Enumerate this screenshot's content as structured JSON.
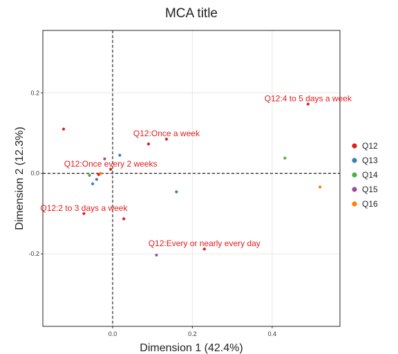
{
  "chart_data": {
    "type": "scatter",
    "title": "MCA title",
    "xlabel": "Dimension 1 (42.4%)",
    "ylabel": "Dimension 2 (12.3%)",
    "xlim": [
      -0.175,
      0.57
    ],
    "ylim": [
      -0.38,
      0.355
    ],
    "x_ticks": [
      {
        "value": 0.0,
        "label": "0.0"
      },
      {
        "value": 0.2,
        "label": "0.2"
      },
      {
        "value": 0.4,
        "label": "0.4"
      }
    ],
    "y_ticks": [
      {
        "value": -0.2,
        "label": "-0.2"
      },
      {
        "value": 0.0,
        "label": "0.0"
      },
      {
        "value": 0.2,
        "label": "0.2"
      }
    ],
    "grid": true,
    "reference_lines": {
      "x": 0,
      "y": 0,
      "style": "dashed"
    },
    "legend_position": "right",
    "legend": [
      "Q12",
      "Q13",
      "Q14",
      "Q15",
      "Q16"
    ],
    "colors": {
      "Q12": "#e41a1c",
      "Q13": "#377eb8",
      "Q14": "#4daf4a",
      "Q15": "#984ea3",
      "Q16": "#ff7f00"
    },
    "series": [
      {
        "name": "Q12",
        "points": [
          {
            "x": 0.49,
            "y": 0.172,
            "label": "Q12:4 to 5 days a week"
          },
          {
            "x": 0.135,
            "y": 0.085,
            "label": "Q12:Once a week"
          },
          {
            "x": 0.09,
            "y": 0.073,
            "label": ""
          },
          {
            "x": -0.005,
            "y": 0.01,
            "label": "Q12:Once every 2 weeks"
          },
          {
            "x": -0.035,
            "y": -0.003,
            "label": ""
          },
          {
            "x": -0.072,
            "y": -0.1,
            "label": "Q12:2 to 3 days a week"
          },
          {
            "x": 0.028,
            "y": -0.113,
            "label": ""
          },
          {
            "x": 0.23,
            "y": -0.188,
            "label": "Q12:Every or nearly every day"
          },
          {
            "x": -0.123,
            "y": 0.11,
            "label": ""
          }
        ]
      },
      {
        "name": "Q13",
        "points": [
          {
            "x": 0.018,
            "y": 0.045
          },
          {
            "x": 0.16,
            "y": -0.046
          },
          {
            "x": -0.04,
            "y": -0.015
          },
          {
            "x": -0.05,
            "y": -0.026
          }
        ]
      },
      {
        "name": "Q14",
        "points": [
          {
            "x": 0.432,
            "y": 0.038
          },
          {
            "x": -0.058,
            "y": -0.005
          }
        ]
      },
      {
        "name": "Q15",
        "points": [
          {
            "x": -0.02,
            "y": 0.036
          },
          {
            "x": 0.11,
            "y": -0.203
          }
        ]
      },
      {
        "name": "Q16",
        "points": [
          {
            "x": 0.52,
            "y": -0.034
          },
          {
            "x": -0.03,
            "y": 0.0
          }
        ]
      }
    ]
  }
}
